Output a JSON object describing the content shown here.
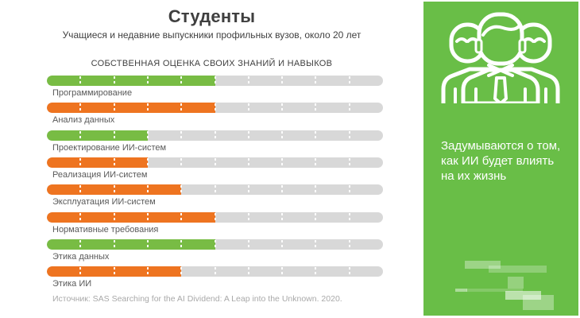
{
  "page": {
    "title": "Студенты",
    "subtitle": "Учащиеся и недавние выпускники профильных вузов, около 20 лет"
  },
  "chart_data": {
    "type": "bar",
    "orientation": "horizontal",
    "title": "СОБСТВЕННАЯ ОЦЕНКА СВОИХ ЗНАНИЙ И НАВЫКОВ",
    "categories": [
      "Программирование",
      "Анализ данных",
      "Проектирование ИИ-систем",
      "Реализация ИИ-систем",
      "Эксплуатация ИИ-систем",
      "Нормативные требования",
      "Этика данных",
      "Этика ИИ"
    ],
    "values": [
      50,
      50,
      30,
      30,
      40,
      50,
      50,
      40
    ],
    "value_unit": "percent of track (estimated from 10-segment scale, no numeric labels shown)",
    "bar_colors": [
      "#78bc44",
      "#ee7420",
      "#78bc44",
      "#ee7420",
      "#ee7420",
      "#ee7420",
      "#78bc44",
      "#ee7420"
    ],
    "track_color": "#d8d8d8",
    "xlim": [
      0,
      100
    ],
    "grid": "white dashed ticks every 10%",
    "legend": "none"
  },
  "source": "Источник: SAS Searching for the AI Dividend: A Leap into the Unknown. 2020.",
  "side_panel": {
    "text": "Задумываются о том, как ИИ будет влиять на их жизнь",
    "icon": "people-group-icon",
    "background_color": "#69be47",
    "text_color": "#ffffff"
  },
  "colors": {
    "heading": "#3f3f3f",
    "label": "#595959",
    "source": "#a9a9a9",
    "background": "#ffffff"
  }
}
